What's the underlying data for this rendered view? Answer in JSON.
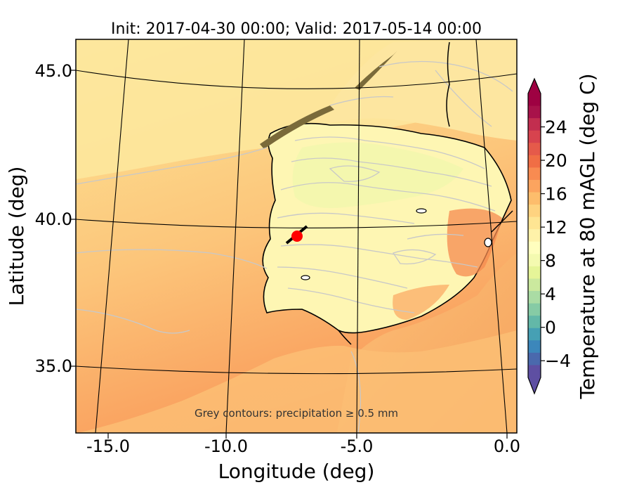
{
  "title": "Init: 2017-04-30 00:00; Valid: 2017-05-14 00:00",
  "x_axis": {
    "label": "Longitude (deg)",
    "ticks": [
      "-15.0",
      "-10.0",
      "-5.0",
      "0.0"
    ]
  },
  "y_axis": {
    "label": "Latitude (deg)",
    "ticks": [
      "45.0",
      "40.0",
      "35.0"
    ]
  },
  "annotation": "Grey contours: precipitation ≥ 0.5 mm",
  "colorbar": {
    "label": "Temperature at 80 mAGL (deg C)",
    "ticks": [
      "−4",
      "0",
      "4",
      "8",
      "12",
      "16",
      "20",
      "24"
    ],
    "colors": [
      "#5e4fa2",
      "#4a69ad",
      "#3c87bb",
      "#46a0b4",
      "#63b8a8",
      "#86cba5",
      "#aadca4",
      "#cbe99e",
      "#e6f598",
      "#f4fab0",
      "#fffebe",
      "#fef2a9",
      "#fee593",
      "#fed380",
      "#fdbd6c",
      "#fca45f",
      "#f88b51",
      "#f06e45",
      "#e55a4a",
      "#d7434e",
      "#c22e4f",
      "#a8124a",
      "#9e0142"
    ],
    "extend_low_color": "#5e4fa2",
    "extend_high_color": "#9e0142"
  },
  "marker": {
    "color": "#ff0000",
    "outline": "#000000"
  },
  "colors": {
    "ocean_warm": "#fbb36c",
    "ocean_pale": "#fde59a",
    "land": "#fef7b3",
    "grid": "#000000",
    "precip_contour": "#c8c8c8"
  }
}
